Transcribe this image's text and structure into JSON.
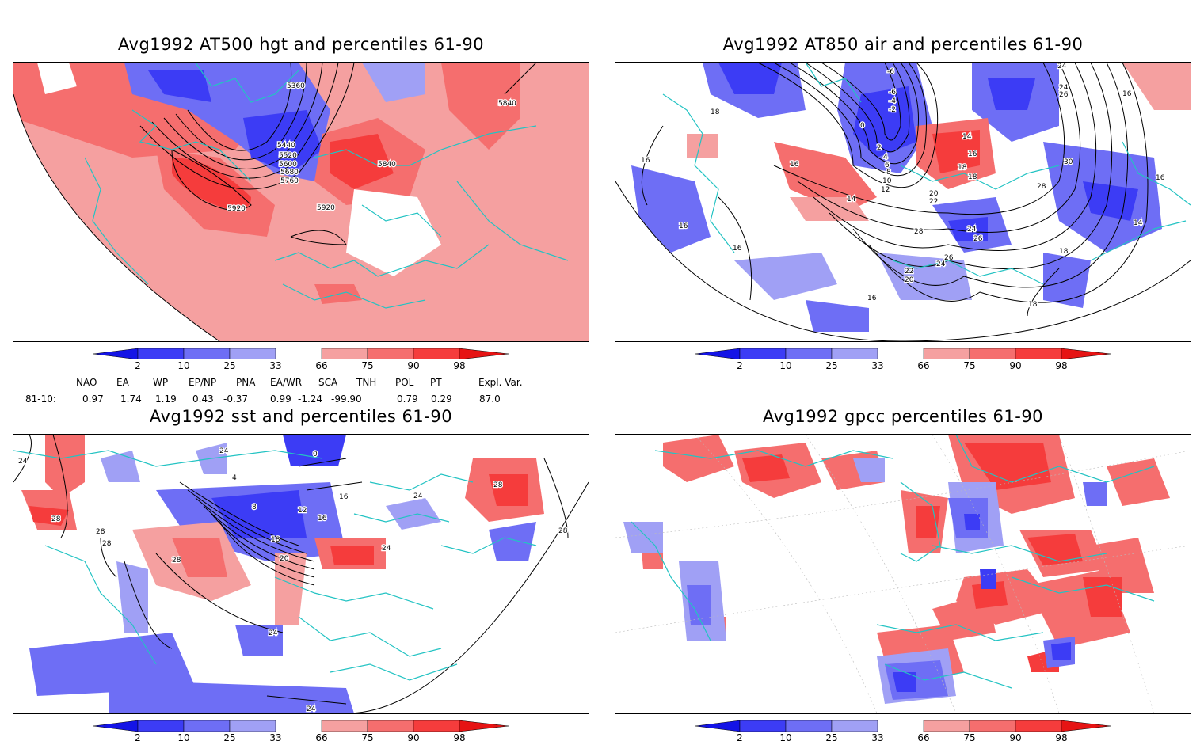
{
  "panels": {
    "tl": {
      "title": "Avg1992 AT500 hgt and percentiles 61-90",
      "contour_labels": [
        "5360",
        "5840",
        "5440",
        "5520",
        "5600",
        "5680",
        "5760",
        "5840",
        "5920",
        "5920"
      ]
    },
    "tr": {
      "title": "Avg1992 AT850 air and percentiles 61-90",
      "contour_labels": [
        "-6",
        "-6",
        "-4",
        "-2",
        "0",
        "2",
        "4",
        "6",
        "8",
        "10",
        "12",
        "14",
        "16",
        "18",
        "18",
        "16",
        "16",
        "14",
        "20",
        "22",
        "24",
        "26",
        "28",
        "24",
        "26",
        "22",
        "20",
        "16",
        "16",
        "18",
        "16",
        "24",
        "24",
        "26",
        "30",
        "28",
        "16",
        "14",
        "18",
        "18",
        "16"
      ]
    },
    "bl": {
      "title": "Avg1992 sst and percentiles 61-90",
      "contour_labels": [
        "24",
        "28",
        "28",
        "28",
        "28",
        "4",
        "8",
        "12",
        "16",
        "18",
        "20",
        "24",
        "24",
        "24",
        "24",
        "28",
        "28",
        "0",
        "24",
        "16"
      ]
    },
    "br": {
      "title": "Avg1992 gpcc percentiles 61-90"
    }
  },
  "colorbar": {
    "ticks": [
      "2",
      "10",
      "25",
      "33",
      "66",
      "75",
      "90",
      "98"
    ],
    "colors": [
      "#1414e6",
      "#3c3cf5",
      "#6e6ef5",
      "#a0a0f5",
      "#ffffff",
      "#f5a0a0",
      "#f56e6e",
      "#f53c3c",
      "#e61414"
    ]
  },
  "indices": {
    "headers": [
      "NAO",
      "EA",
      "WP",
      "EP/NP",
      "PNA",
      "EA/WR",
      "SCA",
      "TNH",
      "POL",
      "PT",
      "Expl. Var."
    ],
    "row_label": "81-10:",
    "values": [
      "0.97",
      "1.74",
      "1.19",
      "0.43",
      "-0.37",
      "0.99",
      "-1.24",
      "-99.90",
      "0.79",
      "0.29",
      "87.0"
    ]
  },
  "map_colors": {
    "outline": "#23c3c3",
    "red_light": "#f5a0a0",
    "red_mid": "#f56e6e",
    "red_dark": "#f53c3c",
    "blue_light": "#a0a0f5",
    "blue_mid": "#6e6ef5",
    "blue_dark": "#3c3cf5"
  }
}
